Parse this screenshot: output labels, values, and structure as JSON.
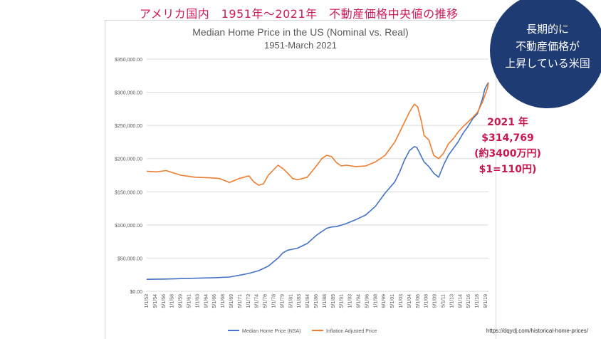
{
  "header": {
    "title_jp": "アメリカ国内　1951年〜2021年　不動産価格中央値の推移"
  },
  "badge": {
    "lines": [
      "長期的に",
      "不動産価格が",
      "上昇している米国"
    ],
    "color": "#1f3b73"
  },
  "annotation": {
    "lines": [
      "2021 年",
      "$314,769",
      "(約3400万円)",
      "$1=110円)"
    ],
    "color": "#c8174f"
  },
  "source": "https://dqydj.com/historical-home-prices/",
  "chart_data": {
    "type": "line",
    "title": "Median Home Price in the US (Nominal vs. Real)",
    "subtitle": "1951-March 2021",
    "xlabel": "",
    "ylabel": "",
    "ylim": [
      0,
      350000
    ],
    "yticks": [
      "$0.00",
      "$50,000.00",
      "$100,000.00",
      "$150,000.00",
      "$200,000.00",
      "$250,000.00",
      "$300,000.00",
      "$350,000.00"
    ],
    "xticks": [
      "1/1/53",
      "9/1/54",
      "5/1/56",
      "1/1/58",
      "9/1/59",
      "5/1/61",
      "1/1/63",
      "9/1/64",
      "5/1/66",
      "1/1/68",
      "9/1/69",
      "5/1/71",
      "1/1/73",
      "9/1/74",
      "5/1/76",
      "1/1/78",
      "9/1/79",
      "5/1/81",
      "1/1/83",
      "9/1/84",
      "5/1/86",
      "1/1/88",
      "9/1/89",
      "5/1/91",
      "1/1/93",
      "9/1/94",
      "5/1/96",
      "1/1/98",
      "9/1/99",
      "5/1/01",
      "1/1/03",
      "9/1/04",
      "5/1/06",
      "1/1/08",
      "9/1/09",
      "5/1/11",
      "1/1/13",
      "9/1/14",
      "5/1/16",
      "1/1/18",
      "9/1/19"
    ],
    "grid": true,
    "legend_position": "bottom",
    "x_range": [
      1951.0,
      2021.25
    ],
    "series": [
      {
        "name": "Median Home Price (NSA)",
        "color": "#4472c4",
        "x": [
          1951,
          1955,
          1960,
          1965,
          1968,
          1970,
          1972,
          1974,
          1976,
          1978,
          1979,
          1980,
          1982,
          1984,
          1986,
          1988,
          1989,
          1990,
          1992,
          1994,
          1996,
          1998,
          2000,
          2002,
          2003,
          2004,
          2005,
          2006,
          2006.5,
          2007,
          2008,
          2009,
          2010,
          2011,
          2012,
          2013,
          2014,
          2015,
          2016,
          2017,
          2018,
          2019,
          2020,
          2020.5,
          2021,
          2021.25
        ],
        "y": [
          18000,
          18500,
          19500,
          20500,
          21500,
          24000,
          27000,
          31000,
          38000,
          50000,
          58000,
          62000,
          65000,
          72000,
          85000,
          95000,
          97000,
          97500,
          102000,
          108000,
          115000,
          128000,
          148000,
          165000,
          180000,
          198000,
          212000,
          218000,
          217000,
          210000,
          195000,
          188000,
          178000,
          172000,
          190000,
          205000,
          215000,
          225000,
          238000,
          248000,
          260000,
          268000,
          290000,
          305000,
          312000,
          314769
        ]
      },
      {
        "name": "Inflation Adjusted Price",
        "color": "#ed7d31",
        "x": [
          1951,
          1953,
          1955,
          1958,
          1961,
          1964,
          1966,
          1968,
          1970,
          1972,
          1973,
          1974,
          1975,
          1976,
          1978,
          1979,
          1980,
          1981,
          1982,
          1984,
          1986,
          1987,
          1988,
          1989,
          1990,
          1991,
          1992,
          1994,
          1996,
          1998,
          2000,
          2002,
          2004,
          2005,
          2006,
          2006.7,
          2007.5,
          2008,
          2009,
          2010,
          2011,
          2012,
          2013,
          2014,
          2015,
          2016,
          2017,
          2018,
          2019,
          2020,
          2020.5,
          2021,
          2021.25
        ],
        "y": [
          181000,
          180000,
          182000,
          175000,
          172000,
          171000,
          170000,
          164000,
          170000,
          174000,
          165000,
          160000,
          162000,
          175000,
          190000,
          185000,
          178000,
          170000,
          168000,
          172000,
          190000,
          200000,
          205000,
          203000,
          194000,
          189000,
          190000,
          188000,
          189000,
          195000,
          205000,
          225000,
          255000,
          270000,
          282000,
          278000,
          255000,
          235000,
          228000,
          205000,
          200000,
          208000,
          222000,
          230000,
          240000,
          248000,
          255000,
          262000,
          270000,
          285000,
          295000,
          305000,
          314769
        ]
      }
    ]
  }
}
